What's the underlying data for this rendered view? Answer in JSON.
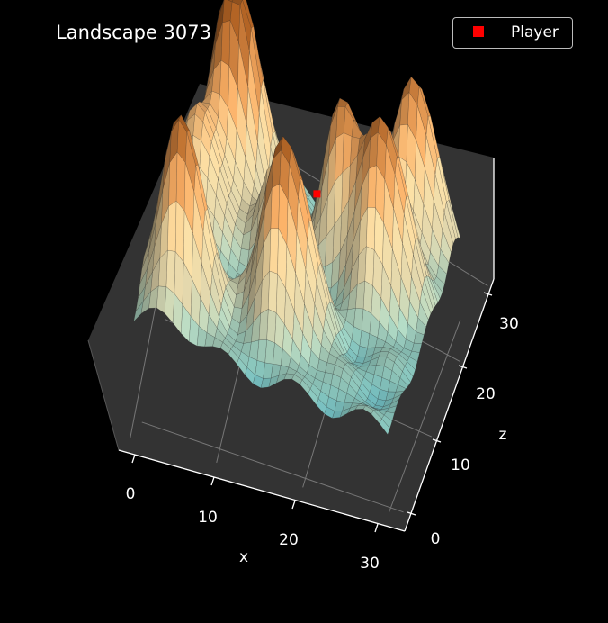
{
  "chart_data": {
    "type": "surface3d",
    "title": "Landscape 3073",
    "xlabel": "x",
    "ylabel": "z",
    "x_ticks": [
      "0",
      "10",
      "20",
      "30"
    ],
    "y_ticks": [
      "0",
      "10",
      "20",
      "30"
    ],
    "xlim": [
      0,
      32
    ],
    "ylim": [
      0,
      32
    ],
    "grid": true,
    "colormap": "terrain-like (blue low, pale green, beige, orange/brown high)",
    "legend": {
      "placement": "top-right",
      "entries": [
        {
          "label": "Player",
          "marker": "square",
          "color": "#ff0000"
        }
      ]
    },
    "player": {
      "x": 17,
      "y": 22
    },
    "background": "#000000",
    "pane_color": "#333333"
  }
}
